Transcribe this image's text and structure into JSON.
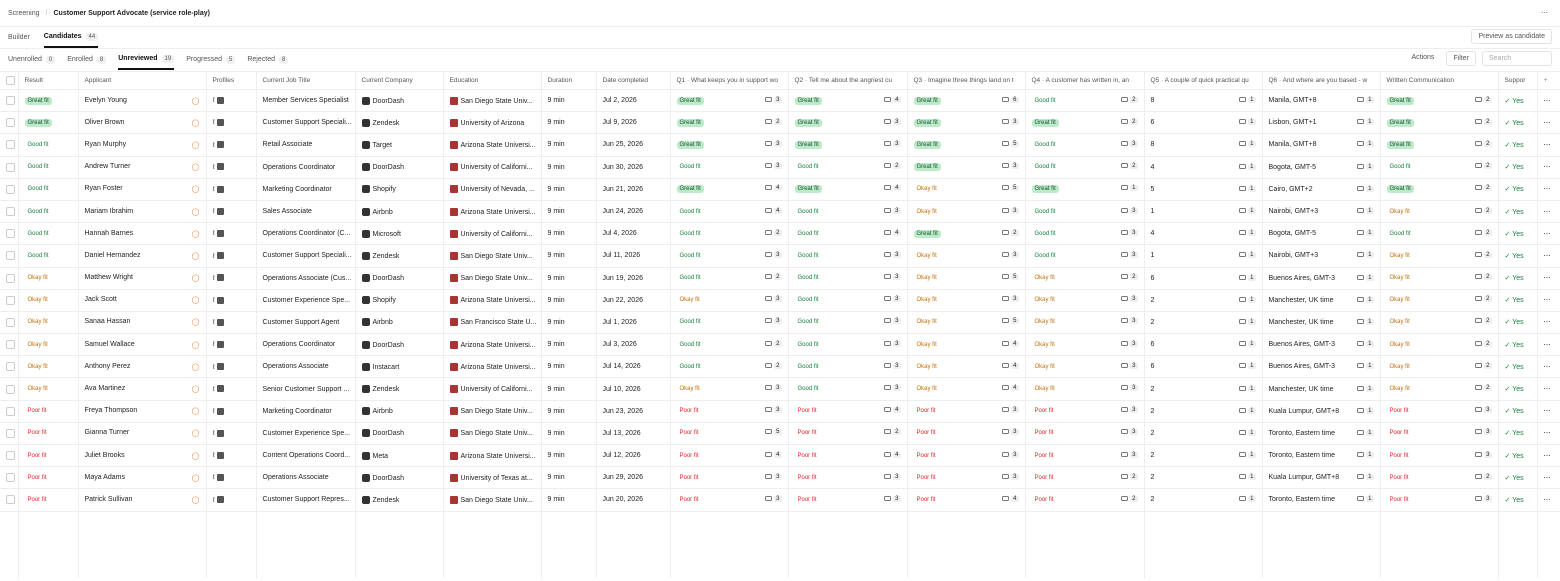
{
  "breadcrumb": [
    "Screening",
    "Customer Support Advocate (service role-play)"
  ],
  "tabs": [
    {
      "label": "Builder"
    },
    {
      "label": "Candidates",
      "count": 44
    }
  ],
  "subtabs": [
    {
      "label": "Unenrolled",
      "count": 0
    },
    {
      "label": "Enrolled",
      "count": 8
    },
    {
      "label": "Unreviewed",
      "count": 19
    },
    {
      "label": "Progressed",
      "count": 5
    },
    {
      "label": "Rejected",
      "count": 8
    }
  ],
  "actions": {
    "preview": "Preview as candidate",
    "actions": "Actions",
    "filter": "Filter",
    "search": "Search"
  },
  "table": {
    "headers": [
      "Result",
      "Applicant",
      "Profiles",
      "Current Job Title",
      "Current Company",
      "Education",
      "Duration",
      "Date completed",
      "Q1 · What keeps you in support wo",
      "Q2 · Tell me about the angriest cu",
      "Q3 · Imagine three things land on t",
      "Q4 · A customer has written in, an",
      "Q5 · A couple of quick practical qu",
      "Q6 · And where are you based - w",
      "Written Communication",
      "Suppor"
    ],
    "rows": [
      [
        "Great fit",
        "Evelyn Young",
        "Member Services Specialist",
        "DoorDash",
        "San Diego State Univ...",
        "9 min",
        "Jul 2, 2026",
        "Great fit",
        3,
        "Great fit",
        4,
        "Great fit",
        6,
        "Good fit",
        2,
        8,
        1,
        "Manila, GMT+8",
        1,
        "Great fit",
        2,
        "Yes"
      ],
      [
        "Great fit",
        "Oliver Brown",
        "Customer Support Speciali...",
        "Zendesk",
        "University of Arizona",
        "9 min",
        "Jul 9, 2026",
        "Great fit",
        2,
        "Great fit",
        3,
        "Great fit",
        3,
        "Great fit",
        2,
        6,
        1,
        "Lisbon, GMT+1",
        1,
        "Great fit",
        2,
        "Yes"
      ],
      [
        "Good fit",
        "Ryan Murphy",
        "Retail Associate",
        "Target",
        "Arizona State Universi...",
        "9 min",
        "Jun 25, 2026",
        "Great fit",
        3,
        "Great fit",
        3,
        "Great fit",
        5,
        "Good fit",
        3,
        8,
        1,
        "Manila, GMT+8",
        1,
        "Great fit",
        2,
        "Yes"
      ],
      [
        "Good fit",
        "Andrew Turner",
        "Operations Coordinator",
        "DoorDash",
        "University of Californi...",
        "9 min",
        "Jun 30, 2026",
        "Good fit",
        3,
        "Good fit",
        2,
        "Great fit",
        3,
        "Good fit",
        2,
        4,
        1,
        "Bogota, GMT-5",
        1,
        "Good fit",
        2,
        "Yes"
      ],
      [
        "Good fit",
        "Ryan Foster",
        "Marketing Coordinator",
        "Shopify",
        "University of Nevada, ...",
        "9 min",
        "Jun 21, 2026",
        "Great fit",
        4,
        "Great fit",
        4,
        "Okay fit",
        5,
        "Great fit",
        1,
        5,
        1,
        "Cairo, GMT+2",
        1,
        "Great fit",
        2,
        "Yes"
      ],
      [
        "Good fit",
        "Mariam Ibrahim",
        "Sales Associate",
        "Airbnb",
        "Arizona State Universi...",
        "9 min",
        "Jun 24, 2026",
        "Good fit",
        4,
        "Good fit",
        3,
        "Okay fit",
        3,
        "Good fit",
        3,
        1,
        1,
        "Nairobi, GMT+3",
        1,
        "Okay fit",
        2,
        "Yes"
      ],
      [
        "Good fit",
        "Hannah Barnes",
        "Operations Coordinator (C...",
        "Microsoft",
        "University of Californi...",
        "9 min",
        "Jul 4, 2026",
        "Good fit",
        2,
        "Good fit",
        4,
        "Great fit",
        2,
        "Good fit",
        3,
        4,
        1,
        "Bogota, GMT-5",
        1,
        "Good fit",
        2,
        "Yes"
      ],
      [
        "Good fit",
        "Daniel Hernandez",
        "Customer Support Speciali...",
        "Zendesk",
        "San Diego State Univ...",
        "9 min",
        "Jul 11, 2026",
        "Good fit",
        3,
        "Good fit",
        3,
        "Okay fit",
        3,
        "Good fit",
        3,
        1,
        1,
        "Nairobi, GMT+3",
        1,
        "Okay fit",
        2,
        "Yes"
      ],
      [
        "Okay fit",
        "Matthew Wright",
        "Operations Associate (Cus...",
        "DoorDash",
        "San Diego State Univ...",
        "9 min",
        "Jun 19, 2026",
        "Good fit",
        2,
        "Good fit",
        3,
        "Okay fit",
        5,
        "Okay fit",
        2,
        6,
        1,
        "Buenos Aires, GMT-3",
        1,
        "Okay fit",
        2,
        "Yes"
      ],
      [
        "Okay fit",
        "Jack Scott",
        "Customer Experience Spe...",
        "Shopify",
        "Arizona State Universi...",
        "9 min",
        "Jun 22, 2026",
        "Okay fit",
        3,
        "Good fit",
        3,
        "Okay fit",
        3,
        "Okay fit",
        3,
        2,
        1,
        "Manchester, UK time",
        1,
        "Okay fit",
        2,
        "Yes"
      ],
      [
        "Okay fit",
        "Sanaa Hassan",
        "Customer Support Agent",
        "Airbnb",
        "San Francisco State U...",
        "9 min",
        "Jul 1, 2026",
        "Good fit",
        3,
        "Good fit",
        3,
        "Okay fit",
        5,
        "Okay fit",
        3,
        2,
        1,
        "Manchester, UK time",
        1,
        "Okay fit",
        2,
        "Yes"
      ],
      [
        "Okay fit",
        "Samuel Wallace",
        "Operations Coordinator",
        "DoorDash",
        "Arizona State Universi...",
        "9 min",
        "Jul 3, 2026",
        "Good fit",
        2,
        "Good fit",
        3,
        "Okay fit",
        4,
        "Okay fit",
        3,
        6,
        1,
        "Buenos Aires, GMT-3",
        1,
        "Okay fit",
        2,
        "Yes"
      ],
      [
        "Okay fit",
        "Anthony Perez",
        "Operations Associate",
        "Instacart",
        "Arizona State Universi...",
        "9 min",
        "Jul 14, 2026",
        "Good fit",
        2,
        "Good fit",
        3,
        "Okay fit",
        4,
        "Okay fit",
        3,
        6,
        1,
        "Buenos Aires, GMT-3",
        1,
        "Okay fit",
        2,
        "Yes"
      ],
      [
        "Okay fit",
        "Ava Martinez",
        "Senior Customer Support ...",
        "Zendesk",
        "University of Californi...",
        "9 min",
        "Jul 10, 2026",
        "Okay fit",
        3,
        "Good fit",
        3,
        "Okay fit",
        4,
        "Okay fit",
        3,
        2,
        1,
        "Manchester, UK time",
        1,
        "Okay fit",
        2,
        "Yes"
      ],
      [
        "Poor fit",
        "Freya Thompson",
        "Marketing Coordinator",
        "Airbnb",
        "San Diego State Univ...",
        "9 min",
        "Jun 23, 2026",
        "Poor fit",
        3,
        "Poor fit",
        4,
        "Poor fit",
        3,
        "Poor fit",
        3,
        2,
        1,
        "Kuala Lumpur, GMT+8",
        1,
        "Poor fit",
        3,
        "Yes"
      ],
      [
        "Poor fit",
        "Gianna Turner",
        "Customer Experience Spe...",
        "DoorDash",
        "San Diego State Univ...",
        "9 min",
        "Jul 13, 2026",
        "Poor fit",
        5,
        "Poor fit",
        2,
        "Poor fit",
        3,
        "Poor fit",
        3,
        2,
        1,
        "Toronto, Eastern time",
        1,
        "Poor fit",
        3,
        "Yes"
      ],
      [
        "Poor fit",
        "Juliet Brooks",
        "Content Operations Coord...",
        "Meta",
        "Arizona State Universi...",
        "9 min",
        "Jul 12, 2026",
        "Poor fit",
        4,
        "Poor fit",
        4,
        "Poor fit",
        3,
        "Poor fit",
        3,
        2,
        1,
        "Toronto, Eastern time",
        1,
        "Poor fit",
        3,
        "Yes"
      ],
      [
        "Poor fit",
        "Maya Adams",
        "Operations Associate",
        "DoorDash",
        "University of Texas at...",
        "9 min",
        "Jun 29, 2026",
        "Poor fit",
        3,
        "Poor fit",
        3,
        "Poor fit",
        3,
        "Poor fit",
        2,
        2,
        1,
        "Kuala Lumpur, GMT+8",
        1,
        "Poor fit",
        2,
        "Yes"
      ],
      [
        "Poor fit",
        "Patrick Sullivan",
        "Customer Support Repres...",
        "Zendesk",
        "San Diego State Univ...",
        "9 min",
        "Jun 20, 2026",
        "Poor fit",
        3,
        "Poor fit",
        3,
        "Poor fit",
        4,
        "Poor fit",
        2,
        2,
        1,
        "Toronto, Eastern time",
        1,
        "Poor fit",
        3,
        "Yes"
      ]
    ]
  }
}
